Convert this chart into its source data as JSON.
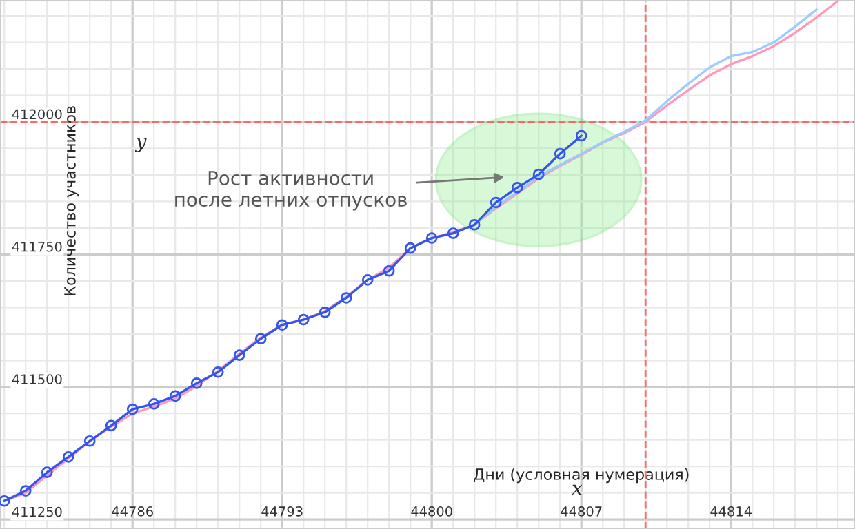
{
  "chart_data": {
    "type": "line",
    "xlabel": "Дни (условная нумерация)",
    "ylabel": "Количество участников",
    "xlim": [
      44779.8,
      44819.8
    ],
    "xticks": [
      44786,
      44793,
      44800,
      44807,
      44814
    ],
    "ylim": [
      411232,
      412230
    ],
    "yticks": [
      411250,
      411500,
      411750,
      412000
    ],
    "grid": true,
    "series": [
      {
        "color": "#ff99bb",
        "marker": "none",
        "x": [
          44780,
          44781,
          44782,
          44783,
          44784,
          44785,
          44786,
          44787,
          44788,
          44789,
          44790,
          44791,
          44792,
          44793,
          44794,
          44795,
          44796,
          44797,
          44798,
          44799,
          44800,
          44801,
          44802,
          44803,
          44804,
          44805,
          44806,
          44807,
          44808,
          44809,
          44810,
          44811,
          44812,
          44813,
          44814,
          44815,
          44816,
          44817,
          44818,
          44819
        ],
        "values": [
          411285,
          411300,
          411333,
          411365,
          411398,
          411425,
          411450,
          411463,
          411478,
          411502,
          411530,
          411563,
          411593,
          411617,
          411627,
          411643,
          411670,
          411702,
          411725,
          411762,
          411781,
          411792,
          411806,
          411837,
          411865,
          411894,
          411917,
          411938,
          411961,
          411979,
          412000,
          412031,
          412060,
          412088,
          412109,
          412124,
          412143,
          412168,
          412197,
          412228
        ]
      },
      {
        "color": "#99ccff",
        "marker": "none",
        "x": [
          44802,
          44803,
          44804,
          44805,
          44806,
          44807,
          44808,
          44809,
          44810,
          44811,
          44812,
          44813,
          44814,
          44815,
          44816,
          44817,
          44818
        ],
        "values": [
          411806,
          411840,
          411868,
          411897,
          411919,
          411940,
          411962,
          411981,
          412003,
          412039,
          412072,
          412103,
          412124,
          412132,
          412150,
          412180,
          412212
        ]
      },
      {
        "color": "#3355ee",
        "marker": "circle",
        "x": [
          44780,
          44781,
          44782,
          44783,
          44784,
          44785,
          44786,
          44787,
          44788,
          44789,
          44790,
          44791,
          44792,
          44793,
          44794,
          44795,
          44796,
          44797,
          44798,
          44799,
          44800,
          44801,
          44802,
          44803,
          44804,
          44805,
          44806,
          44807
        ],
        "values": [
          411285,
          411304,
          411339,
          411368,
          411398,
          411427,
          411458,
          411468,
          411483,
          411507,
          411528,
          411560,
          411591,
          411617,
          411627,
          411641,
          411668,
          411702,
          411719,
          411762,
          411781,
          411790,
          411806,
          411848,
          411876,
          411901,
          411940,
          411974
        ]
      }
    ],
    "ref_lines": [
      {
        "axis": "y",
        "value": 412000,
        "color": "#ff6666",
        "line_style": "dashed"
      },
      {
        "axis": "x",
        "value": 44810,
        "color": "#ff6666",
        "line_style": "dashed"
      }
    ],
    "annotations": [
      "Рост активности\nпосле летних отпусков",
      "x",
      "y"
    ]
  }
}
